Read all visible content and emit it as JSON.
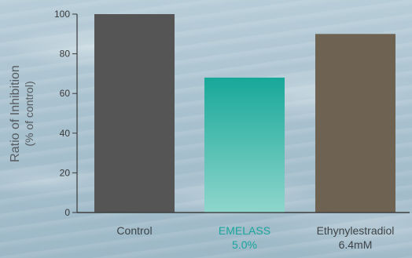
{
  "chart_data": {
    "type": "bar",
    "ylabel_line1": "Ratio of Inhibition",
    "ylabel_line2": "(% of control)",
    "ylim": [
      0,
      100
    ],
    "yticks": [
      "0",
      "20",
      "40",
      "60",
      "80",
      "100"
    ],
    "categories": [
      {
        "line1": "Control",
        "line2": ""
      },
      {
        "line1": "EMELASS",
        "line2": "5.0%"
      },
      {
        "line1": "Ethynylestradiol",
        "line2": "6.4mM"
      }
    ],
    "values": [
      100,
      68,
      90
    ],
    "colors": [
      "#555555",
      "#1aaa9a",
      "#6e6253"
    ],
    "label_colors": [
      "#3f4447",
      "#1aa69c",
      "#3f4447"
    ],
    "grid": false
  }
}
